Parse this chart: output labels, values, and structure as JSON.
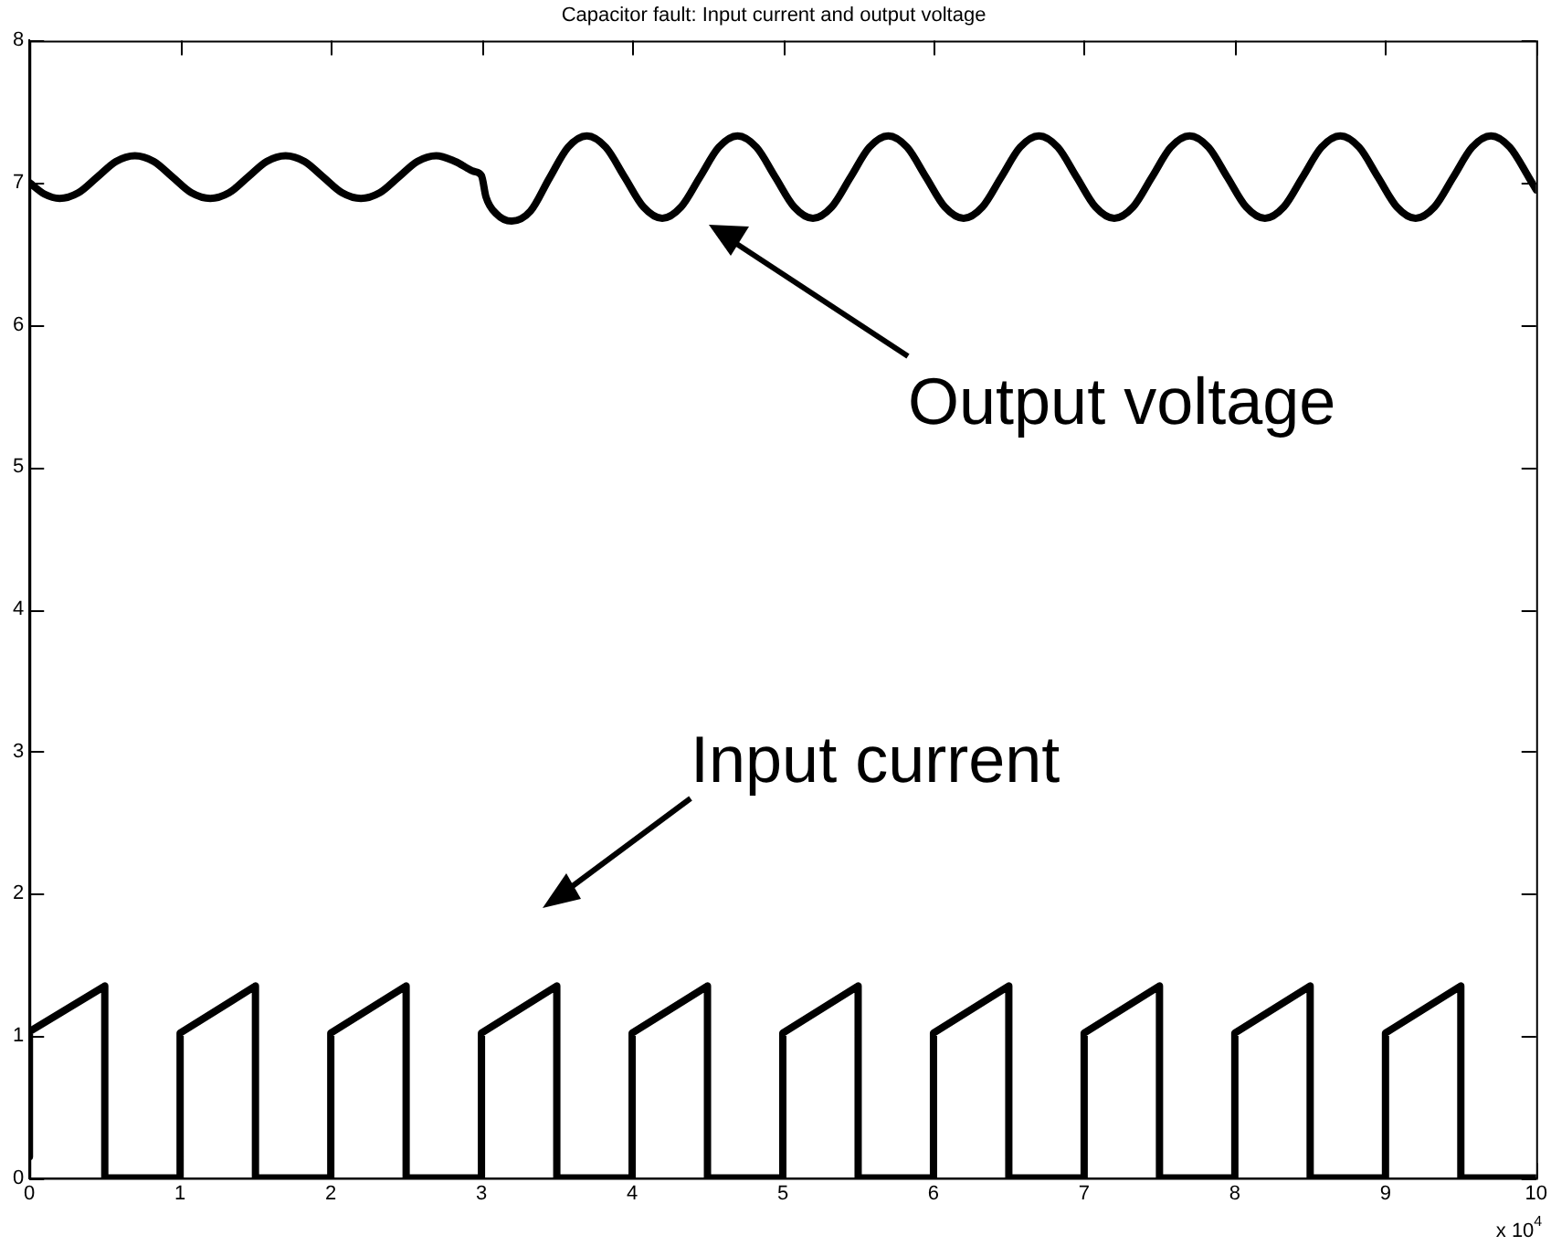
{
  "chart_data": {
    "type": "line",
    "title": "Capacitor fault: Input current and output voltage",
    "xlim": [
      0,
      10
    ],
    "xticks": [
      0,
      1,
      2,
      3,
      4,
      5,
      6,
      7,
      8,
      9,
      10
    ],
    "ylim": [
      0,
      8
    ],
    "yticks": [
      0,
      1,
      2,
      3,
      4,
      5,
      6,
      7,
      8
    ],
    "grid": false,
    "legend": false,
    "marker": "none",
    "line_style": "solid",
    "series": [
      {
        "color": "#000000",
        "x": [
          0,
          0.1,
          0.2,
          0.325,
          0.45,
          0.575,
          0.7,
          0.825,
          0.95,
          1.075,
          1.2,
          1.325,
          1.45,
          1.575,
          1.7,
          1.825,
          1.95,
          2.075,
          2.2,
          2.325,
          2.45,
          2.575,
          2.7,
          2.825,
          2.95,
          3.0,
          3.03,
          3.1,
          3.2,
          3.325,
          3.45,
          3.575,
          3.7,
          3.825,
          3.95,
          4.075,
          4.2,
          4.325,
          4.45,
          4.575,
          4.7,
          4.825,
          4.95,
          5.075,
          5.2,
          5.325,
          5.45,
          5.575,
          5.7,
          5.825,
          5.95,
          6.075,
          6.2,
          6.325,
          6.45,
          6.575,
          6.7,
          6.825,
          6.95,
          7.075,
          7.2,
          7.325,
          7.45,
          7.575,
          7.7,
          7.825,
          7.95,
          8.075,
          8.2,
          8.325,
          8.45,
          8.575,
          8.7,
          8.825,
          8.95,
          9.075,
          9.2,
          9.325,
          9.45,
          9.575,
          9.7,
          9.825,
          9.95,
          10
        ],
        "values": [
          7.0,
          6.92,
          6.89,
          6.93,
          7.04,
          7.15,
          7.19,
          7.15,
          7.04,
          6.93,
          6.89,
          6.93,
          7.04,
          7.15,
          7.19,
          7.15,
          7.04,
          6.93,
          6.89,
          6.93,
          7.04,
          7.15,
          7.19,
          7.15,
          7.08,
          7.05,
          6.9,
          6.78,
          6.73,
          6.8,
          7.03,
          7.25,
          7.33,
          7.25,
          7.04,
          6.83,
          6.75,
          6.83,
          7.04,
          7.25,
          7.33,
          7.25,
          7.04,
          6.83,
          6.75,
          6.83,
          7.04,
          7.25,
          7.33,
          7.25,
          7.04,
          6.83,
          6.75,
          6.83,
          7.04,
          7.25,
          7.33,
          7.25,
          7.04,
          6.83,
          6.75,
          6.83,
          7.04,
          7.25,
          7.33,
          7.25,
          7.04,
          6.83,
          6.75,
          6.83,
          7.04,
          7.25,
          7.33,
          7.25,
          7.04,
          6.83,
          6.75,
          6.83,
          7.04,
          7.25,
          7.33,
          7.25,
          7.04,
          6.95
        ]
      },
      {
        "color": "#000000",
        "x": [
          0,
          0,
          0.5,
          0.5,
          1,
          1,
          1.5,
          1.5,
          2,
          2,
          2.5,
          2.5,
          3,
          3,
          3.5,
          3.5,
          4,
          4,
          4.5,
          4.5,
          5,
          5,
          5.5,
          5.5,
          6,
          6,
          6.5,
          6.5,
          7,
          7,
          7.5,
          7.5,
          8,
          8,
          8.5,
          8.5,
          9,
          9,
          9.5,
          9.5,
          10
        ],
        "values": [
          0.15,
          1.03,
          1.35,
          0,
          0,
          1.02,
          1.35,
          0,
          0,
          1.02,
          1.35,
          0,
          0,
          1.02,
          1.35,
          0,
          0,
          1.02,
          1.35,
          0,
          0,
          1.02,
          1.35,
          0,
          0,
          1.02,
          1.35,
          0,
          0,
          1.02,
          1.35,
          0,
          0,
          1.02,
          1.35,
          0,
          0,
          1.02,
          1.35,
          0,
          0
        ]
      }
    ],
    "annotations": [
      "Output voltage",
      "Input current",
      "x 10$^{4}$"
    ]
  }
}
